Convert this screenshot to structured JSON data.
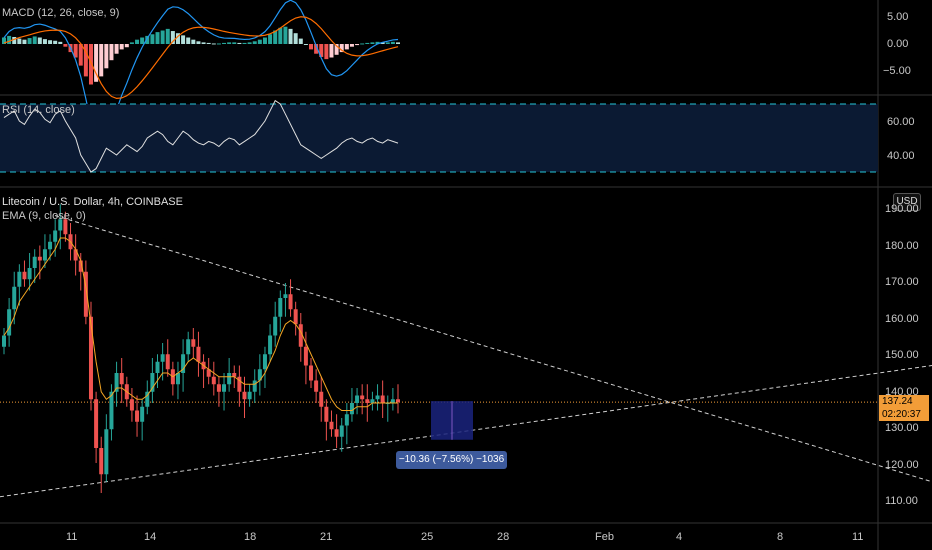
{
  "colors": {
    "up": "#26a69a",
    "down": "#ef5350",
    "ema": "#f5a623",
    "macd_line": "#2196f3",
    "signal_line": "#ff6d00",
    "rsi_line": "#e0e0e0",
    "rsi_band": "#0b1a33",
    "rsi_bound": "#26c6da",
    "price_line": "#f29d38",
    "measure": "#3d5a9c",
    "range_box": "#1a237e"
  },
  "macd": {
    "title": "MACD (12, 26, close, 9)",
    "axis": [
      "5.00",
      "0.00",
      "−5.00"
    ]
  },
  "rsi": {
    "title": "RSI (14, close)",
    "axis": [
      "60.00",
      "40.00"
    ],
    "upper": 70,
    "lower": 30
  },
  "main": {
    "title": "Litecoin / U.S. Dollar, 4h, COINBASE",
    "ema_label": "EMA (9, close, 0)",
    "currency": "USD",
    "axis": [
      "190.00",
      "180.00",
      "170.00",
      "160.00",
      "150.00",
      "140.00",
      "130.00",
      "120.00",
      "110.00"
    ],
    "last_price": "137.24",
    "countdown": "02:20:37",
    "measure_label": "−10.36 (−7.56%) −1036"
  },
  "xaxis": [
    "11",
    "14",
    "18",
    "21",
    "25",
    "28",
    "Feb",
    "4",
    "8",
    "11"
  ],
  "chart_data": {
    "type": "candlestick",
    "title": "Litecoin / U.S. Dollar, 4h, COINBASE",
    "x_ticks": [
      "11",
      "14",
      "18",
      "21",
      "25",
      "28",
      "Feb",
      "4",
      "8",
      "11"
    ],
    "ylim": [
      105,
      193
    ],
    "last_price": 137.24,
    "candles_close": [
      155,
      162,
      168,
      172,
      170,
      173,
      176,
      175,
      178,
      180,
      183,
      186,
      182,
      178,
      175,
      172,
      160,
      138,
      125,
      118,
      130,
      140,
      145,
      142,
      138,
      135,
      132,
      136,
      140,
      145,
      148,
      150,
      146,
      142,
      145,
      150,
      154,
      152,
      148,
      146,
      144,
      142,
      140,
      142,
      145,
      144,
      140,
      138,
      140,
      143,
      146,
      150,
      155,
      160,
      165,
      166,
      162,
      158,
      152,
      147,
      143,
      140,
      136,
      132,
      130,
      128,
      131,
      134,
      137,
      139,
      138,
      137,
      138,
      139,
      137,
      137,
      138,
      137.24
    ],
    "ema_9": [
      155,
      157,
      160,
      164,
      166,
      168,
      170,
      172,
      174,
      176,
      178,
      181,
      181,
      180,
      178,
      175,
      168,
      158,
      148,
      140,
      138,
      139,
      141,
      141,
      140,
      139,
      138,
      138,
      139,
      141,
      143,
      145,
      145,
      144,
      145,
      146,
      148,
      149,
      148,
      147,
      146,
      145,
      144,
      144,
      144,
      144,
      143,
      142,
      142,
      142,
      143,
      145,
      148,
      151,
      155,
      158,
      159,
      158,
      156,
      153,
      150,
      147,
      144,
      141,
      138,
      136,
      135,
      135,
      135,
      136,
      136,
      136,
      137,
      137,
      137,
      137,
      137,
      137
    ],
    "macd_hist": [
      1.2,
      1.5,
      1.3,
      1.0,
      0.8,
      1.1,
      1.4,
      1.2,
      0.9,
      0.7,
      0.6,
      0.4,
      -0.5,
      -1.5,
      -2.5,
      -4,
      -6,
      -7.5,
      -7,
      -6,
      -4.5,
      -3,
      -1.8,
      -1,
      -0.6,
      0.3,
      0.8,
      1.2,
      1.5,
      1.8,
      2.2,
      2.5,
      2.8,
      2.4,
      2,
      1.6,
      1.2,
      0.8,
      0.5,
      0.3,
      0.2,
      0.1,
      0.1,
      0.2,
      0.3,
      0.3,
      0.2,
      0.2,
      0.3,
      0.5,
      0.8,
      1.2,
      1.8,
      2.5,
      3.0,
      3.2,
      2.8,
      2,
      1,
      0,
      -1,
      -1.8,
      -2.4,
      -2.8,
      -2.5,
      -2,
      -1.5,
      -1,
      -0.5,
      -0.2,
      0.1,
      0.2,
      0.3,
      0.4,
      0.3,
      0.3,
      0.4,
      0.3
    ],
    "rsi": [
      62,
      64,
      66,
      60,
      58,
      63,
      67,
      65,
      61,
      59,
      64,
      66,
      60,
      55,
      50,
      40,
      35,
      30,
      32,
      38,
      44,
      42,
      40,
      43,
      46,
      44,
      42,
      45,
      50,
      52,
      54,
      52,
      48,
      46,
      50,
      54,
      52,
      49,
      47,
      46,
      48,
      47,
      45,
      48,
      50,
      49,
      46,
      48,
      50,
      52,
      56,
      60,
      66,
      72,
      70,
      64,
      58,
      52,
      46,
      44,
      42,
      40,
      38,
      40,
      42,
      44,
      47,
      49,
      50,
      48,
      47,
      49,
      50,
      48,
      47,
      49,
      48,
      47
    ]
  }
}
